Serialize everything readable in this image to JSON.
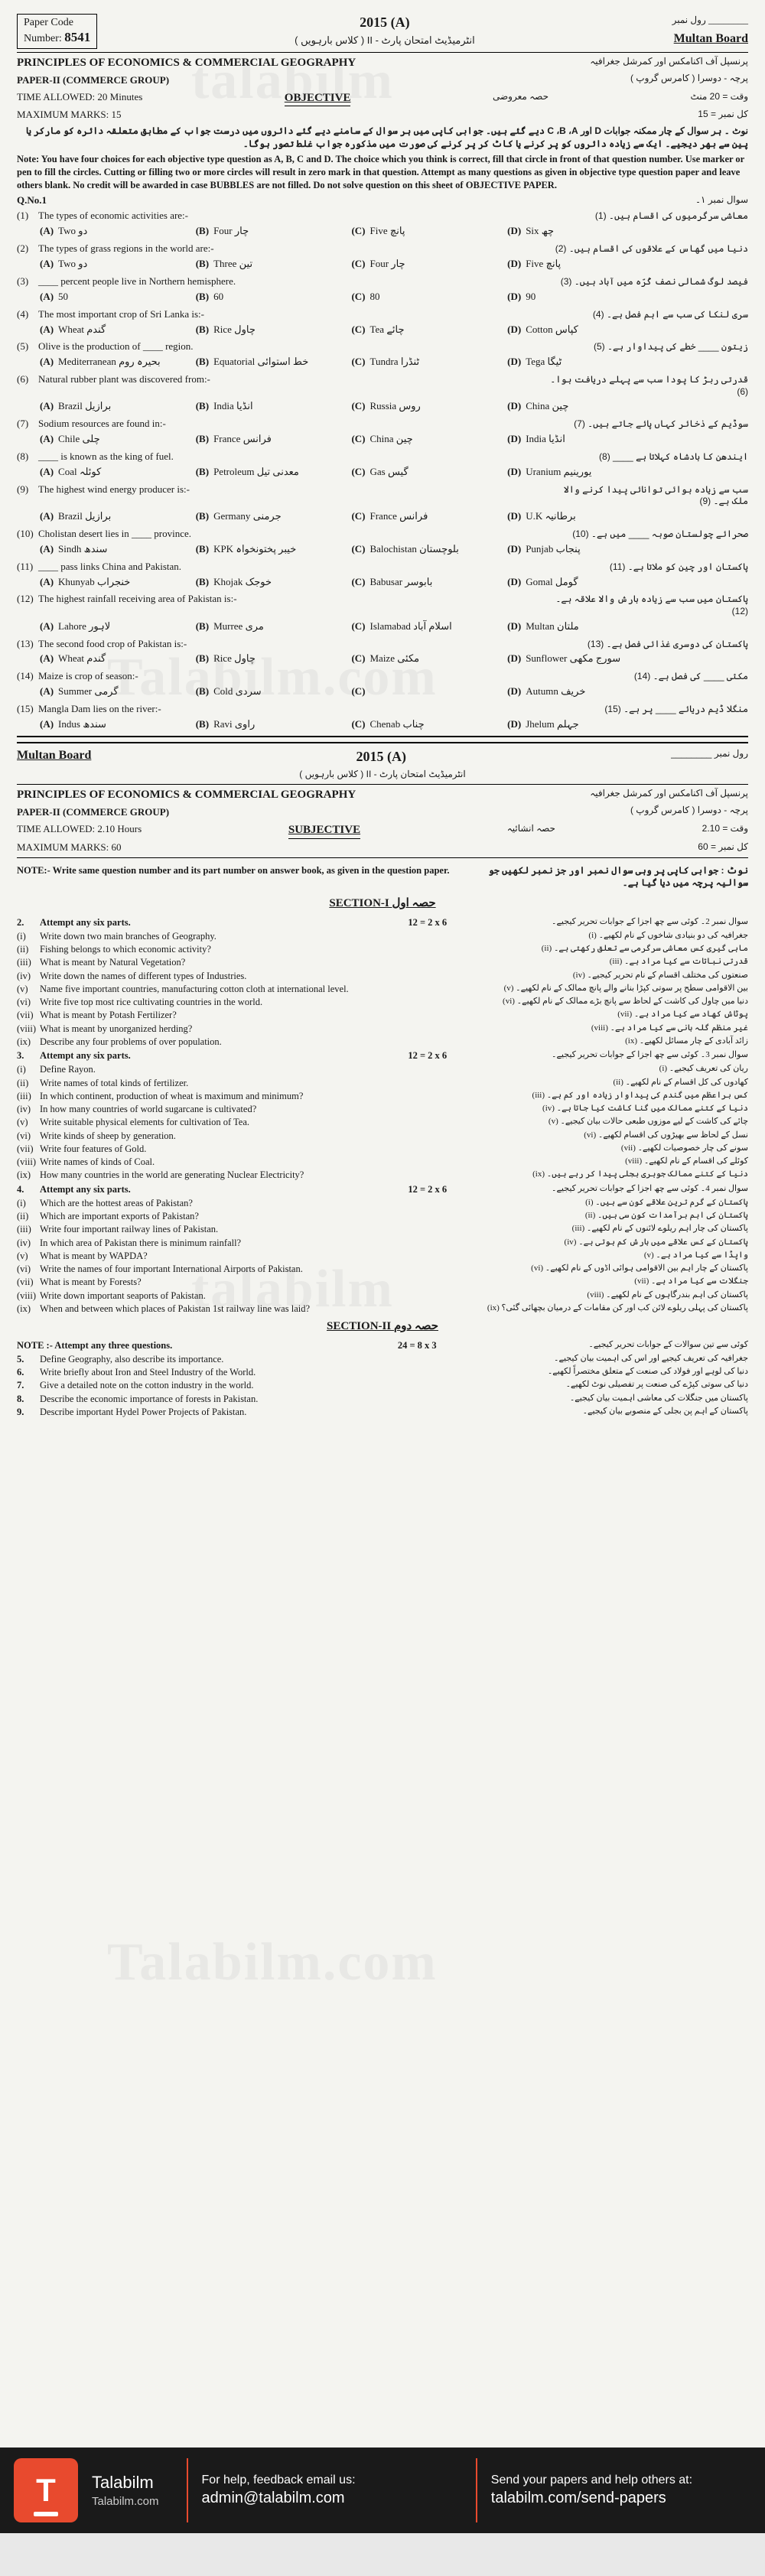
{
  "watermarks": [
    "talabilm",
    "Talabilm.com",
    "talabilm",
    "Talabilm.com"
  ],
  "header": {
    "paper_code_label": "Paper Code",
    "paper_code_number_label": "Number:",
    "paper_code_number": "8541",
    "year": "2015 (A)",
    "board": "Multan Board",
    "roll_label_urdu": "رول نمبر",
    "intermediate_urdu": "انٹرمیڈیٹ امتحان پارٹ - II ( کلاس بارہویں )"
  },
  "objective": {
    "title_en": "PRINCIPLES OF ECONOMICS & COMMERCIAL GEOGRAPHY",
    "title_urdu": "پرنسپل آف اکنامکس اور کمرشل جغرافیہ",
    "paper_label": "PAPER-II   (COMMERCE GROUP)",
    "paper_urdu": "پرچہ - دوسرا ( کامرس گروپ )",
    "time_label": "TIME ALLOWED: 20 Minutes",
    "time_urdu": "وقت  =  20 منٹ",
    "section_label": "OBJECTIVE",
    "section_urdu": "حصہ معروضی",
    "max_marks_label": "MAXIMUM MARKS: 15",
    "max_marks_urdu": "کل نمبر  = 15",
    "note_urdu": "نوٹ ۔ ہر سوال کے چار ممکنہ جوابات D اور C ،B ،A دیے گئے ہیں۔ جوابی کاپی میں ہر سوال کے سامنے دیے گئے دائروں میں درست جواب کے مطابق متعلقہ دائرہ کو مارکر یا پین سے بھر دیجیے۔ ایک سے زیادہ دائروں کو پر کرنے یا کاٹ کر پر کرنے کی صورت میں مذکورہ جواب غلط تصور ہوگا۔",
    "note_en": "Note: You have four choices for each objective type question as A, B, C and D. The choice which you think is correct, fill that circle in front of that question number. Use marker or pen to fill the circles. Cutting or filling two or more circles will result in zero mark in that question. Attempt as many questions as given in objective type question paper and leave others blank. No credit will be awarded in case BUBBLES are not filled. Do not solve question on this sheet of OBJECTIVE PAPER.",
    "q_label": "Q.No.1",
    "q_label_urdu": "سوال نمبر ۱۔"
  },
  "mcqs": [
    {
      "n": "(1)",
      "q": "The types of economic activities are:-",
      "urdu": "معاشی سرگرمیوں کی اقسام ہیں۔",
      "opts": [
        [
          "(A)",
          "Two دو"
        ],
        [
          "(B)",
          "Four چار"
        ],
        [
          "(C)",
          "Five پانچ"
        ],
        [
          "(D)",
          "Six چھ"
        ]
      ]
    },
    {
      "n": "(2)",
      "q": "The types of grass regions in the world are:-",
      "urdu": "دنیا میں گھاس کے علاقوں کی اقسام ہیں۔",
      "opts": [
        [
          "(A)",
          "Two دو"
        ],
        [
          "(B)",
          "Three تین"
        ],
        [
          "(C)",
          "Four چار"
        ],
        [
          "(D)",
          "Five پانچ"
        ]
      ]
    },
    {
      "n": "(3)",
      "q": "____ percent people live in Northern hemisphere.",
      "urdu": "فیصد لوگ شمالی نصف کُرّہ میں آباد ہیں۔",
      "opts": [
        [
          "(A)",
          "50"
        ],
        [
          "(B)",
          "60"
        ],
        [
          "(C)",
          "80"
        ],
        [
          "(D)",
          "90"
        ]
      ]
    },
    {
      "n": "(4)",
      "q": "The most important crop of Sri Lanka is:-",
      "urdu": "سری لنکا کی سب سے اہم فصل ہے۔",
      "opts": [
        [
          "(A)",
          "Wheat گندم"
        ],
        [
          "(B)",
          "Rice چاول"
        ],
        [
          "(C)",
          "Tea چائے"
        ],
        [
          "(D)",
          "Cotton کپاس"
        ]
      ]
    },
    {
      "n": "(5)",
      "q": "Olive is the production of ____ region.",
      "urdu": "زیتون ____ خطے کی پیداوار ہے۔",
      "opts": [
        [
          "(A)",
          "Mediterranean بحیرہ روم"
        ],
        [
          "(B)",
          "Equatorial خط استوائی"
        ],
        [
          "(C)",
          "Tundra ٹنڈرا"
        ],
        [
          "(D)",
          "Tega ٹیگا"
        ]
      ]
    },
    {
      "n": "(6)",
      "q": "Natural rubber plant was discovered from:-",
      "urdu": "قدرتی ربڑ کا پودا سب سے پہلے دریافت ہوا۔",
      "opts": [
        [
          "(A)",
          "Brazil برازیل"
        ],
        [
          "(B)",
          "India انڈیا"
        ],
        [
          "(C)",
          "Russia روس"
        ],
        [
          "(D)",
          "China چین"
        ]
      ]
    },
    {
      "n": "(7)",
      "q": "Sodium resources are found in:-",
      "urdu": "سوڈیم کے ذخائر کہاں پائے جاتے ہیں۔",
      "opts": [
        [
          "(A)",
          "Chile چلی"
        ],
        [
          "(B)",
          "France فرانس"
        ],
        [
          "(C)",
          "China چین"
        ],
        [
          "(D)",
          "India انڈیا"
        ]
      ]
    },
    {
      "n": "(8)",
      "q": "____ is known as the king of fuel.",
      "urdu": "ایندھن کا بادشاہ کہلاتا ہے ____",
      "opts": [
        [
          "(A)",
          "Coal کوئلہ"
        ],
        [
          "(B)",
          "Petroleum معدنی تیل"
        ],
        [
          "(C)",
          "Gas گیس"
        ],
        [
          "(D)",
          "Uranium یورینیم"
        ]
      ]
    },
    {
      "n": "(9)",
      "q": "The highest wind energy producer is:-",
      "urdu": "سب سے زیادہ ہوائی توانائی پیدا کرنے والا ملک ہے۔",
      "opts": [
        [
          "(A)",
          "Brazil برازیل"
        ],
        [
          "(B)",
          "Germany جرمنی"
        ],
        [
          "(C)",
          "France فرانس"
        ],
        [
          "(D)",
          "U.K برطانیہ"
        ]
      ]
    },
    {
      "n": "(10)",
      "q": "Cholistan desert lies in ____ province.",
      "urdu": "صحرائے چولستان صوبہ ____ میں ہے۔",
      "opts": [
        [
          "(A)",
          "Sindh سندھ"
        ],
        [
          "(B)",
          "KPK خیبر پختونخواہ"
        ],
        [
          "(C)",
          "Balochistan بلوچستان"
        ],
        [
          "(D)",
          "Punjab پنجاب"
        ]
      ]
    },
    {
      "n": "(11)",
      "q": "____ pass links China and Pakistan.",
      "urdu": "پاکستان اور چین کو ملاتا ہے۔",
      "opts": [
        [
          "(A)",
          "Khunyab خنجراب"
        ],
        [
          "(B)",
          "Khojak خوجک"
        ],
        [
          "(C)",
          "Babusar بابوسر"
        ],
        [
          "(D)",
          "Gomal گومل"
        ]
      ]
    },
    {
      "n": "(12)",
      "q": "The highest rainfall receiving area of Pakistan is:-",
      "urdu": "پاکستان میں سب سے زیادہ بارش والا علاقہ ہے۔",
      "opts": [
        [
          "(A)",
          "Lahore لاہور"
        ],
        [
          "(B)",
          "Murree مری"
        ],
        [
          "(C)",
          "Islamabad اسلام آباد"
        ],
        [
          "(D)",
          "Multan ملتان"
        ]
      ]
    },
    {
      "n": "(13)",
      "q": "The second food crop of Pakistan is:-",
      "urdu": "پاکستان کی دوسری غذائی فصل ہے۔",
      "opts": [
        [
          "(A)",
          "Wheat گندم"
        ],
        [
          "(B)",
          "Rice چاول"
        ],
        [
          "(C)",
          "Maize مکئی"
        ],
        [
          "(D)",
          "Sunflower سورج مکھی"
        ]
      ]
    },
    {
      "n": "(14)",
      "q": "Maize is crop of season:-",
      "urdu": "مکئی ____ کی فصل ہے۔",
      "opts": [
        [
          "(A)",
          "Summer گرمی"
        ],
        [
          "(B)",
          "Cold سردی"
        ],
        [
          "(C)",
          ""
        ],
        [
          "(D)",
          "Autumn خریف"
        ]
      ]
    },
    {
      "n": "(15)",
      "q": "Mangla Dam lies on the river:-",
      "urdu": "منگلا ڈیم دریائے ____ پر ہے۔",
      "opts": [
        [
          "(A)",
          "Indus سندھ"
        ],
        [
          "(B)",
          "Ravi راوی"
        ],
        [
          "(C)",
          "Chenab چناب"
        ],
        [
          "(D)",
          "Jhelum جہلم"
        ]
      ]
    }
  ],
  "subjective": {
    "board": "Multan Board",
    "year": "2015 (A)",
    "roll_urdu": "رول نمبر",
    "intermediate_urdu": "انٹرمیڈیٹ امتحان پارٹ - II ( کلاس بارہویں )",
    "title_en": "PRINCIPLES OF ECONOMICS & COMMERCIAL GEOGRAPHY",
    "title_urdu": "پرنسپل آف اکنامکس اور کمرشل جغرافیہ",
    "paper_label": "PAPER-II   (COMMERCE GROUP)",
    "paper_urdu": "پرچہ - دوسرا ( کامرس گروپ )",
    "time_label": "TIME ALLOWED: 2.10  Hours",
    "time_urdu": "وقت  =  2.10",
    "section_label": "SUBJECTIVE",
    "section_urdu": "حصہ انشائیہ",
    "max_marks_label": "MAXIMUM MARKS: 60",
    "max_marks_urdu": "کل نمبر  =  60",
    "note_en": "NOTE:- Write same question number and its part number on answer book, as given in the question paper.",
    "note_urdu": "نوٹ : جوابی کاپی پر وہی سوال نمبر اور جز نمبر لکھیں جو سوالیہ پرچہ میں دیا گیا ہے۔",
    "section1": "SECTION-I   حصہ اول"
  },
  "q2": {
    "attempt": "Attempt any six parts.",
    "marks": "12 = 2 x 6",
    "urdu": "سوال نمبر 2۔ کوئی سے چھ اجزا کے جوابات تحریر کیجیے۔",
    "parts": [
      [
        "(i)",
        "Write down two main branches of Geography.",
        "جغرافیہ کی دو بنیادی شاخوں کے نام لکھیے۔"
      ],
      [
        "(ii)",
        "Fishing belongs to which economic activity?",
        "ماہی گیری کس معاشی سرگرمی سے تعلق رکھتی ہے۔"
      ],
      [
        "(iii)",
        "What is meant by Natural Vegetation?",
        "قدرتی نباتات سے کیا مراد ہے۔"
      ],
      [
        "(iv)",
        "Write down the names of different types of Industries.",
        "صنعتوں کی مختلف اقسام کے نام تحریر کیجیے۔"
      ],
      [
        "(v)",
        "Name five important countries, manufacturing cotton cloth at international level.",
        "بین الاقوامی سطح پر سوتی کپڑا بنانے والے پانچ ممالک کے نام لکھیے۔"
      ],
      [
        "(vi)",
        "Write five top most rice cultivating countries in the world.",
        "دنیا میں چاول کی کاشت کے لحاظ سے پانچ بڑے ممالک کے نام لکھیے۔"
      ],
      [
        "(vii)",
        "What is meant by Potash Fertilizer?",
        "پوٹاش کھاد سے کیا مراد ہے۔"
      ],
      [
        "(viii)",
        "What is meant by unorganized herding?",
        "غیر منظم گلہ بانی سے کیا مراد ہے۔"
      ],
      [
        "(ix)",
        "Describe any four problems of over population.",
        "زائد آبادی کے چار مسائل لکھیے۔"
      ]
    ]
  },
  "q3": {
    "attempt": "Attempt any six parts.",
    "marks": "12 = 2 x 6",
    "urdu": "سوال نمبر 3۔ کوئی سے چھ اجزا کے جوابات تحریر کیجیے۔",
    "parts": [
      [
        "(i)",
        "Define Rayon.",
        "ریان کی تعریف کیجیے۔"
      ],
      [
        "(ii)",
        "Write names of total kinds of fertilizer.",
        "کھادوں کی کل اقسام کے نام لکھیے۔"
      ],
      [
        "(iii)",
        "In which continent, production of wheat is maximum and minimum?",
        "کس براعظم میں گندم کی پیداوار زیادہ اور کم ہے۔"
      ],
      [
        "(iv)",
        "In how many countries of world sugarcane is cultivated?",
        "دنیا کے کتنے ممالک میں گنا کاشت کیا جاتا ہے۔"
      ],
      [
        "(v)",
        "Write suitable physical elements for cultivation of Tea.",
        "چائے کی کاشت کے لیے موزوں طبعی حالات بیان کیجیے۔"
      ],
      [
        "(vi)",
        "Write kinds of sheep by generation.",
        "نسل کے لحاظ سے بھیڑوں کی اقسام لکھیے۔"
      ],
      [
        "(vii)",
        "Write four features of Gold.",
        "سونے کی چار خصوصیات لکھیے۔"
      ],
      [
        "(viii)",
        "Write names of kinds of Coal.",
        "کوئلے کی اقسام کے نام لکھیے۔"
      ],
      [
        "(ix)",
        "How many countries in the world are generating Nuclear Electricity?",
        "دنیا کے کتنے ممالک جوہری بجلی پیدا کر رہے ہیں۔"
      ]
    ]
  },
  "q4": {
    "attempt": "Attempt any six parts.",
    "marks": "12 = 2 x 6",
    "urdu": "سوال نمبر 4۔ کوئی سے چھ اجزا کے جوابات تحریر کیجیے۔",
    "parts": [
      [
        "(i)",
        "Which are the hottest areas of Pakistan?",
        "پاکستان کے گرم ترین علاقے کون سے ہیں۔"
      ],
      [
        "(ii)",
        "Which are important exports of Pakistan?",
        "پاکستان کی اہم برآمدات کون سی ہیں۔"
      ],
      [
        "(iii)",
        "Write four important railway lines of Pakistan.",
        "پاکستان کی چار اہم ریلوے لائنوں کے نام لکھیے۔"
      ],
      [
        "(iv)",
        "In which area of Pakistan there is minimum rainfall?",
        "پاکستان کے کس علاقے میں بارش کم ہوتی ہے۔"
      ],
      [
        "(v)",
        "What is meant by WAPDA?",
        "واپڈا سے کیا مراد ہے۔"
      ],
      [
        "(vi)",
        "Write the names of four important International Airports of Pakistan.",
        "پاکستان کے چار اہم بین الاقوامی ہوائی اڈوں کے نام لکھیے۔"
      ],
      [
        "(vii)",
        "What is meant by Forests?",
        "جنگلات سے کیا مراد ہے۔"
      ],
      [
        "(viii)",
        "Write down important seaports of Pakistan.",
        "پاکستان کی اہم بندرگاہوں کے نام لکھیے۔"
      ],
      [
        "(ix)",
        "When and between which places of Pakistan 1st railway line was laid?",
        "پاکستان کی پہلی ریلوے لائن کب اور کن مقامات کے درمیان بچھائی گئی؟"
      ]
    ]
  },
  "section2": {
    "label": "SECTION-II   حصہ دوم",
    "note": "NOTE :- Attempt any three questions.",
    "marks": "24 = 8 x 3",
    "urdu": "کوئی سے تین سوالات کے جوابات تحریر کیجیے۔",
    "qs": [
      [
        "5.",
        "Define Geography, also describe its importance.",
        "جغرافیہ کی تعریف کیجیے اور اس کی اہمیت بیان کیجیے۔"
      ],
      [
        "6.",
        "Write briefly about Iron and Steel Industry of the World.",
        "دنیا کی لوہے اور فولاد کی صنعت کے متعلق مختصراً لکھیے۔"
      ],
      [
        "7.",
        "Give a detailed note on the cotton industry in the world.",
        "دنیا کی سوتی کپڑے کی صنعت پر تفصیلی نوٹ لکھیے۔"
      ],
      [
        "8.",
        "Describe the economic importance of forests in Pakistan.",
        "پاکستان میں جنگلات کی معاشی اہمیت بیان کیجیے۔"
      ],
      [
        "9.",
        "Describe important Hydel Power Projects of Pakistan.",
        "پاکستان کے اہم پن بجلی کے منصوبے بیان کیجیے۔"
      ]
    ]
  },
  "footer": {
    "brand": "Talabilm",
    "site": "Talabilm.com",
    "help": "For help, feedback email us:",
    "email": "admin@talabilm.com",
    "send": "Send your papers and help others at:",
    "send_url": "talabilm.com/send-papers",
    "logo_letter": "T"
  }
}
